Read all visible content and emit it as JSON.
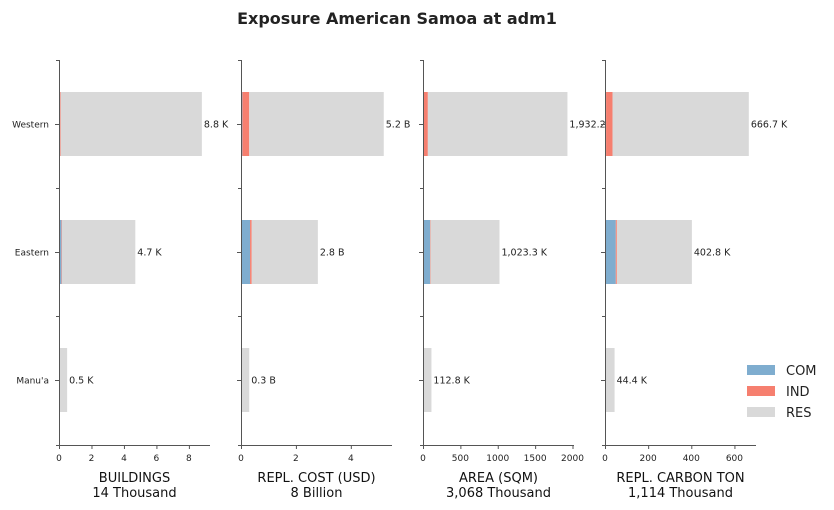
{
  "chart_data": {
    "type": "bar",
    "orientation": "horizontal",
    "stacked": true,
    "title": "Exposure American Samoa at adm1",
    "categories": [
      "Western",
      "Eastern",
      "Manu'a"
    ],
    "legend": {
      "placement": "bottom-right",
      "items": [
        {
          "name": "COM",
          "color": "#7fadcf"
        },
        {
          "name": "IND",
          "color": "#f67f6f"
        },
        {
          "name": "RES",
          "color": "#d9d9d9"
        }
      ]
    },
    "panels": [
      {
        "xlabel": "BUILDINGS",
        "subtitle": "14 Thousand",
        "xlim": [
          0,
          9.3
        ],
        "ticks": [
          0,
          2,
          4,
          6,
          8
        ],
        "tick_labels": [
          "0",
          "2",
          "4",
          "6",
          "8"
        ],
        "series": [
          {
            "name": "COM",
            "values": [
              0.03,
              0.15,
              0.0
            ]
          },
          {
            "name": "IND",
            "values": [
              0.07,
              0.03,
              0.0
            ]
          },
          {
            "name": "RES",
            "values": [
              8.7,
              4.52,
              0.5
            ]
          }
        ],
        "labels": [
          "8.8 K",
          "4.7 K",
          "0.5 K"
        ]
      },
      {
        "xlabel": "REPL. COST (USD)",
        "subtitle": "8 Billion",
        "xlim": [
          0,
          5.5
        ],
        "ticks": [
          0,
          2,
          4
        ],
        "tick_labels": [
          "0",
          "2",
          "4"
        ],
        "series": [
          {
            "name": "COM",
            "values": [
              0.05,
              0.33,
              0.0
            ]
          },
          {
            "name": "IND",
            "values": [
              0.25,
              0.06,
              0.0
            ]
          },
          {
            "name": "RES",
            "values": [
              4.9,
              2.41,
              0.3
            ]
          }
        ],
        "labels": [
          "5.2 B",
          "2.8 B",
          "0.3 B"
        ]
      },
      {
        "xlabel": "AREA (SQM)",
        "subtitle": "3,068 Thousand",
        "xlim": [
          0,
          2020
        ],
        "ticks": [
          0,
          500,
          1000,
          1500,
          2000
        ],
        "tick_labels": [
          "0",
          "500",
          "1000",
          "1500",
          "2000"
        ],
        "series": [
          {
            "name": "COM",
            "values": [
              10,
              95,
              0
            ]
          },
          {
            "name": "IND",
            "values": [
              55,
              5,
              0
            ]
          },
          {
            "name": "RES",
            "values": [
              1867.2,
              923.3,
              112.8
            ]
          }
        ],
        "labels": [
          "1,932.2",
          "1,023.3 K",
          "112.8 K"
        ]
      },
      {
        "xlabel": "REPL. CARBON TON",
        "subtitle": "1,114 Thousand",
        "xlim": [
          0,
          700
        ],
        "ticks": [
          0,
          200,
          400,
          600
        ],
        "tick_labels": [
          "0",
          "200",
          "400",
          "600"
        ],
        "series": [
          {
            "name": "COM",
            "values": [
              5,
              50,
              0
            ]
          },
          {
            "name": "IND",
            "values": [
              30,
              5,
              0
            ]
          },
          {
            "name": "RES",
            "values": [
              631.7,
              347.8,
              44.4
            ]
          }
        ],
        "labels": [
          "666.7 K",
          "402.8 K",
          "44.4 K"
        ]
      }
    ]
  }
}
